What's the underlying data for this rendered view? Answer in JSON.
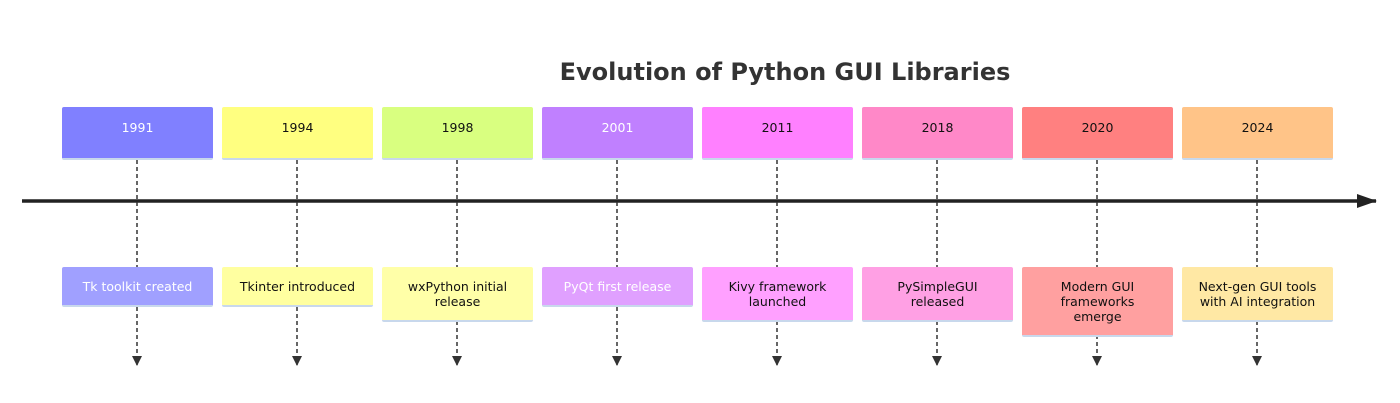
{
  "title": "Evolution of Python GUI Libraries",
  "events": [
    {
      "year": "1991",
      "description": "Tk toolkit created"
    },
    {
      "year": "1994",
      "description": "Tkinter introduced"
    },
    {
      "year": "1998",
      "description": "wxPython initial release"
    },
    {
      "year": "2001",
      "description": "PyQt first release"
    },
    {
      "year": "2011",
      "description": "Kivy framework launched"
    },
    {
      "year": "2018",
      "description": "PySimpleGUI released"
    },
    {
      "year": "2020",
      "description": "Modern GUI frameworks emerge"
    },
    {
      "year": "2024",
      "description": "Next-gen GUI tools with AI integration"
    }
  ]
}
